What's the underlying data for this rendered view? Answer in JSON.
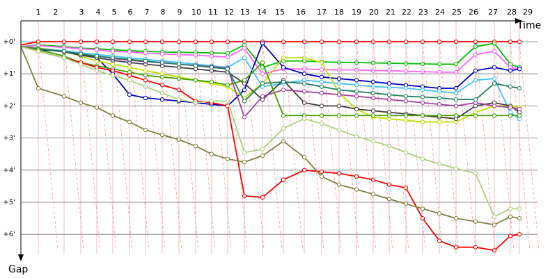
{
  "chart_data": {
    "type": "line",
    "xlabel": "Time",
    "ylabel": "Gap",
    "laps": [
      "1",
      "2",
      "3",
      "4",
      "5",
      "6",
      "7",
      "8",
      "9",
      "10",
      "11",
      "12",
      "13",
      "14",
      "15",
      "16",
      "17",
      "18",
      "19",
      "20",
      "21",
      "22",
      "23",
      "24",
      "25",
      "26",
      "27",
      "28",
      "29"
    ],
    "gap_ticks": [
      "+0'",
      "+1'",
      "+2'",
      "+3'",
      "+4'",
      "+5'",
      "+6'"
    ],
    "ylim_minutes": [
      0,
      6.6
    ],
    "grid": true,
    "colors": {
      "grid_h": "#707070",
      "grid_v": "#e8b0b0",
      "lapping": "#ff9a9a",
      "axis": "#000000"
    },
    "series": [
      {
        "color": "#ff0000",
        "values": [
          0.1,
          0.0,
          0.0,
          0.0,
          0.0,
          0.0,
          0.0,
          0.0,
          0.0,
          0.0,
          0.0,
          0.0,
          0.0,
          0.0,
          0.0,
          0.0,
          0.0,
          0.0,
          0.0,
          0.0,
          0.0,
          0.0,
          0.0,
          0.0,
          0.0,
          0.0,
          0.0,
          0.0,
          0.0,
          0.0
        ]
      },
      {
        "color": "#00c000",
        "values": [
          0.15,
          0.1,
          0.15,
          0.2,
          0.22,
          0.25,
          0.28,
          0.3,
          0.32,
          0.33,
          0.34,
          0.35,
          0.36,
          0.1,
          0.8,
          0.6,
          0.6,
          0.63,
          0.64,
          0.65,
          0.66,
          0.67,
          0.68,
          0.69,
          0.7,
          0.7,
          0.15,
          0.05,
          0.7,
          0.8
        ]
      },
      {
        "color": "#ff60ff",
        "values": [
          0.15,
          0.12,
          0.18,
          0.22,
          0.25,
          0.3,
          0.32,
          0.35,
          0.38,
          0.4,
          0.42,
          0.45,
          0.48,
          0.2,
          1.0,
          0.85,
          0.85,
          0.87,
          0.88,
          0.88,
          0.9,
          0.9,
          0.92,
          0.93,
          0.95,
          0.95,
          0.4,
          0.3,
          0.8,
          0.85
        ]
      },
      {
        "color": "#0000c0",
        "values": [
          0.15,
          0.25,
          0.3,
          0.4,
          0.5,
          1.0,
          1.65,
          1.75,
          1.8,
          1.85,
          1.9,
          1.95,
          2.0,
          1.5,
          0.05,
          0.8,
          1.0,
          1.1,
          1.15,
          1.2,
          1.25,
          1.3,
          1.35,
          1.4,
          1.45,
          1.45,
          0.9,
          0.8,
          0.9,
          0.85
        ]
      },
      {
        "color": "#40c0ff",
        "values": [
          0.15,
          0.2,
          0.28,
          0.35,
          0.4,
          0.45,
          0.5,
          0.55,
          0.6,
          0.65,
          0.7,
          0.75,
          0.8,
          0.5,
          1.4,
          1.3,
          1.2,
          1.25,
          1.3,
          1.35,
          1.4,
          1.42,
          1.45,
          1.5,
          1.55,
          1.6,
          1.2,
          1.15,
          2.2,
          2.4
        ]
      },
      {
        "color": "#c0e000",
        "values": [
          0.15,
          0.2,
          0.3,
          0.45,
          0.6,
          0.7,
          0.8,
          0.9,
          1.0,
          1.1,
          1.2,
          1.3,
          1.4,
          1.75,
          1.3,
          0.5,
          0.5,
          0.65,
          1.6,
          2.1,
          2.35,
          2.4,
          2.45,
          2.5,
          2.5,
          2.5,
          2.2,
          2.0,
          2.0,
          2.05
        ]
      },
      {
        "color": "#404040",
        "values": [
          0.15,
          0.22,
          0.32,
          0.42,
          0.5,
          0.58,
          0.65,
          0.7,
          0.75,
          0.8,
          0.85,
          0.9,
          0.95,
          1.3,
          1.8,
          1.2,
          1.9,
          2.0,
          2.0,
          2.1,
          2.15,
          2.2,
          2.25,
          2.3,
          2.35,
          2.4,
          2.0,
          1.9,
          2.0,
          2.2
        ]
      },
      {
        "color": "#a040a0",
        "values": [
          0.15,
          0.22,
          0.3,
          0.38,
          0.45,
          0.52,
          0.58,
          0.62,
          0.66,
          0.7,
          0.74,
          0.78,
          0.82,
          2.35,
          1.7,
          1.5,
          1.55,
          1.6,
          1.65,
          1.7,
          1.75,
          1.8,
          1.85,
          1.9,
          1.95,
          2.0,
          1.9,
          2.0,
          2.05,
          2.1
        ]
      },
      {
        "color": "#208060",
        "values": [
          0.15,
          0.22,
          0.3,
          0.38,
          0.45,
          0.5,
          0.55,
          0.6,
          0.65,
          0.7,
          0.75,
          0.8,
          0.85,
          1.85,
          1.3,
          1.25,
          1.3,
          1.4,
          1.5,
          1.55,
          1.6,
          1.65,
          1.7,
          1.72,
          1.75,
          1.8,
          1.8,
          1.3,
          1.4,
          1.45
        ]
      },
      {
        "color": "#40a000",
        "values": [
          0.15,
          0.25,
          0.45,
          0.65,
          0.75,
          0.85,
          0.95,
          1.05,
          1.1,
          1.15,
          1.2,
          1.25,
          1.35,
          1.2,
          0.65,
          2.3,
          2.3,
          2.3,
          2.3,
          2.3,
          2.3,
          2.3,
          2.3,
          2.3,
          2.3,
          2.3,
          2.3,
          2.3,
          2.3,
          2.3
        ]
      },
      {
        "color": "#ff0000",
        "values": [
          0.15,
          0.3,
          0.5,
          0.65,
          0.8,
          0.9,
          1.05,
          1.2,
          1.35,
          1.5,
          1.85,
          1.9,
          2.0,
          4.8,
          4.85,
          4.3,
          4.0,
          4.05,
          4.1,
          4.2,
          4.3,
          4.45,
          4.55,
          5.5,
          6.2,
          6.4,
          6.4,
          6.5,
          6.05,
          6.0
        ]
      },
      {
        "color": "#b0d080",
        "values": [
          0.15,
          0.3,
          0.5,
          0.7,
          0.9,
          1.05,
          1.2,
          1.4,
          1.6,
          1.8,
          1.9,
          1.85,
          1.85,
          3.45,
          3.35,
          2.7,
          2.4,
          2.55,
          2.75,
          2.95,
          3.1,
          3.25,
          3.45,
          3.65,
          3.8,
          3.95,
          4.1,
          5.45,
          5.2,
          5.2
        ]
      },
      {
        "color": "#808040",
        "values": [
          0.15,
          1.45,
          1.7,
          1.9,
          2.05,
          2.3,
          2.5,
          2.75,
          2.9,
          3.05,
          3.25,
          3.5,
          3.65,
          3.75,
          3.55,
          3.1,
          3.6,
          4.2,
          4.45,
          4.6,
          4.75,
          4.9,
          5.05,
          5.2,
          5.35,
          5.5,
          5.6,
          5.7,
          5.45,
          5.5
        ]
      }
    ]
  }
}
